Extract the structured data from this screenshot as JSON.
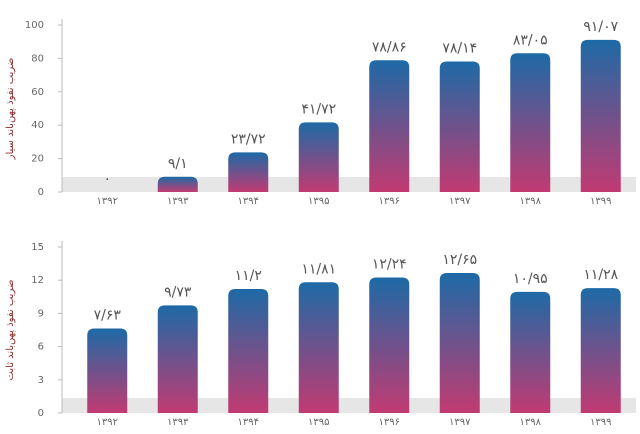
{
  "chart_data": [
    {
      "type": "bar",
      "y_label": "ضریب نفوذ پهن‌باند سیار",
      "categories": [
        "۱۳۹۲",
        "۱۳۹۳",
        "۱۳۹۴",
        "۱۳۹۵",
        "۱۳۹۶",
        "۱۳۹۷",
        "۱۳۹۸",
        "۱۳۹۹"
      ],
      "values": [
        0,
        9.1,
        23.72,
        41.72,
        78.86,
        78.14,
        83.05,
        91.07
      ],
      "value_labels": [
        "۰",
        "۹/۱",
        "۲۳/۷۲",
        "۴۱/۷۲",
        "۷۸/۸۶",
        "۷۸/۱۴",
        "۸۳/۰۵",
        "۹۱/۰۷"
      ],
      "colors": [
        "#1d6aa6",
        "#c23a72"
      ],
      "ylim": [
        0,
        100
      ],
      "yticks": [
        0,
        20,
        40,
        60,
        80,
        100
      ]
    },
    {
      "type": "bar",
      "y_label": "ضریب نفوذ پهن‌باند ثابت",
      "categories": [
        "۱۳۹۲",
        "۱۳۹۳",
        "۱۳۹۴",
        "۱۳۹۵",
        "۱۳۹۶",
        "۱۳۹۷",
        "۱۳۹۸",
        "۱۳۹۹"
      ],
      "values": [
        7.63,
        9.73,
        11.2,
        11.81,
        12.24,
        12.65,
        10.95,
        11.28
      ],
      "value_labels": [
        "۷/۶۳",
        "۹/۷۳",
        "۱۱/۲",
        "۱۱/۸۱",
        "۱۲/۲۴",
        "۱۲/۶۵",
        "۱۰/۹۵",
        "۱۱/۲۸"
      ],
      "colors": [
        "#1d6aa6",
        "#c23a72"
      ],
      "ylim": [
        0,
        15
      ],
      "yticks": [
        0,
        3,
        6,
        9,
        12,
        15
      ]
    }
  ]
}
